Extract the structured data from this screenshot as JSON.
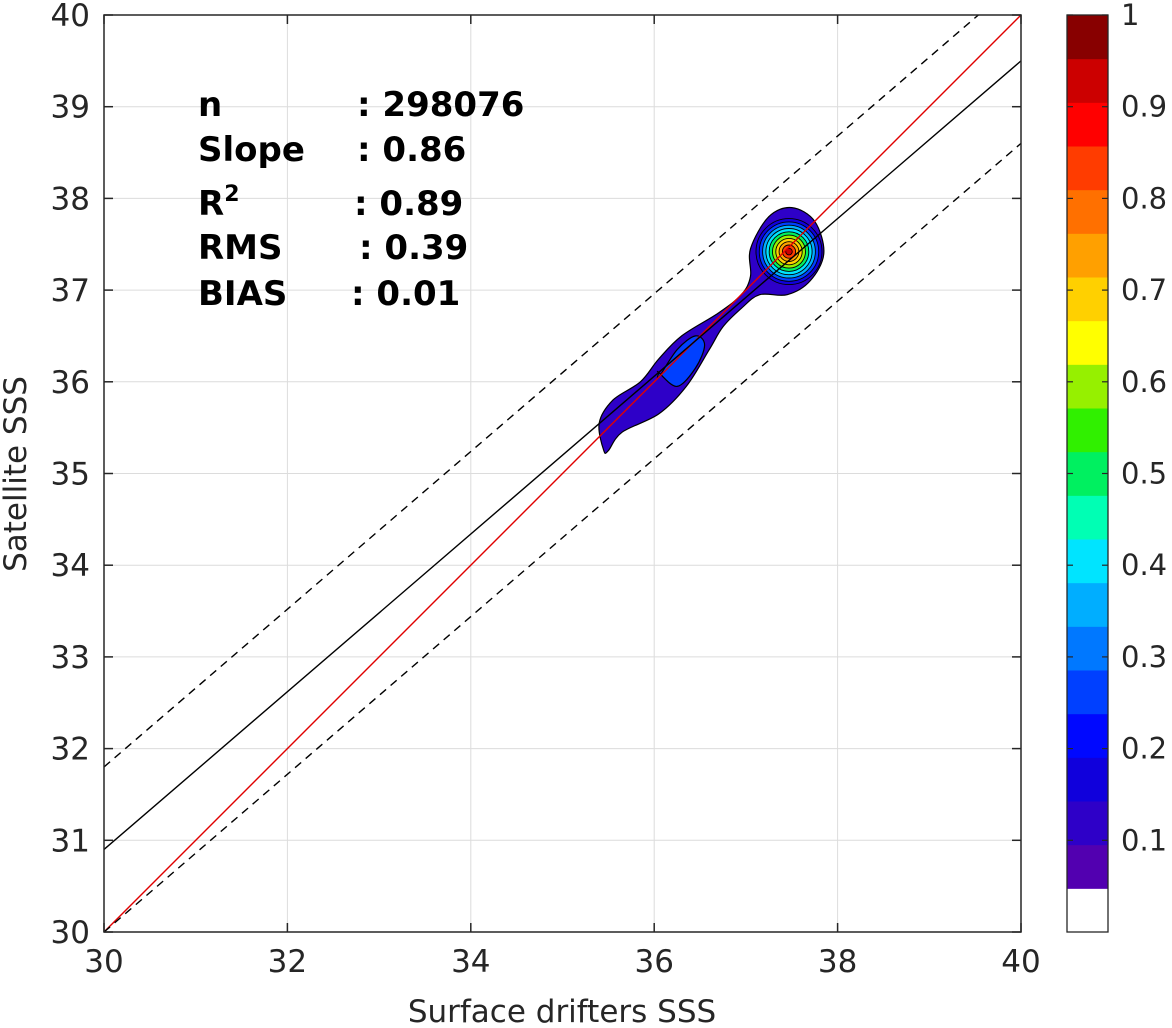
{
  "chart_data": {
    "type": "heatmap",
    "subtype": "density-contour-scatter",
    "xlabel": "Surface drifters SSS",
    "ylabel": "Satellite SSS",
    "xlim": [
      30,
      40
    ],
    "ylim": [
      30,
      40
    ],
    "xticks": [
      30,
      32,
      34,
      36,
      38,
      40
    ],
    "yticks": [
      30,
      31,
      32,
      33,
      34,
      35,
      36,
      37,
      38,
      39,
      40
    ],
    "grid": true,
    "stats": [
      {
        "key": "n",
        "label": "n",
        "value": ": 298076"
      },
      {
        "key": "slope",
        "label": "Slope",
        "value": ": 0.86"
      },
      {
        "key": "r2",
        "label": "R",
        "label_sup": "2",
        "value": ": 0.89"
      },
      {
        "key": "rms",
        "label": "RMS",
        "value": ": 0.39"
      },
      {
        "key": "bias",
        "label": "BIAS",
        "value": ": 0.01"
      }
    ],
    "lines": [
      {
        "name": "1:1",
        "style": "solid",
        "color": "#e00000",
        "points": [
          [
            30,
            30
          ],
          [
            40,
            40
          ]
        ]
      },
      {
        "name": "fit",
        "style": "solid",
        "color": "#000000",
        "points": [
          [
            30,
            30.9
          ],
          [
            40,
            39.5
          ]
        ]
      },
      {
        "name": "upper",
        "style": "dashed",
        "color": "#000000",
        "points": [
          [
            30,
            31.8
          ],
          [
            40,
            40.4
          ]
        ]
      },
      {
        "name": "lower",
        "style": "dashed",
        "color": "#000000",
        "points": [
          [
            30,
            30
          ],
          [
            40,
            38.6
          ]
        ]
      }
    ],
    "density": {
      "outer_region": [
        [
          35.45,
          35.25
        ],
        [
          35.4,
          35.55
        ],
        [
          35.55,
          35.8
        ],
        [
          35.85,
          36.0
        ],
        [
          36.05,
          36.25
        ],
        [
          36.3,
          36.5
        ],
        [
          36.7,
          36.75
        ],
        [
          36.95,
          36.95
        ],
        [
          37.05,
          37.15
        ],
        [
          37.05,
          37.45
        ],
        [
          37.25,
          37.8
        ],
        [
          37.5,
          37.9
        ],
        [
          37.75,
          37.75
        ],
        [
          37.85,
          37.4
        ],
        [
          37.7,
          37.1
        ],
        [
          37.45,
          36.95
        ],
        [
          37.15,
          36.95
        ],
        [
          36.95,
          36.8
        ],
        [
          36.75,
          36.6
        ],
        [
          36.6,
          36.35
        ],
        [
          36.35,
          35.95
        ],
        [
          36.05,
          35.65
        ],
        [
          35.65,
          35.45
        ],
        [
          35.5,
          35.25
        ]
      ],
      "inner_region": [
        [
          36.05,
          36.1
        ],
        [
          36.05,
          36.05
        ],
        [
          36.25,
          36.35
        ],
        [
          36.45,
          36.5
        ],
        [
          36.55,
          36.4
        ],
        [
          36.45,
          36.15
        ],
        [
          36.25,
          35.95
        ],
        [
          36.05,
          36.1
        ]
      ],
      "peak": {
        "x": 37.47,
        "y": 37.42
      },
      "levels": [
        0.05,
        0.1,
        0.2,
        0.3,
        0.4,
        0.5,
        0.6,
        0.7,
        0.8,
        0.9,
        0.97
      ]
    },
    "colorbar": {
      "range": [
        0,
        1
      ],
      "ticks": [
        "0.1",
        "0.2",
        "0.3",
        "0.4",
        "0.5",
        "0.6",
        "0.7",
        "0.8",
        "0.9",
        "1"
      ],
      "colors": [
        "#ffffff",
        "#5200b0",
        "#2e00c8",
        "#1000dc",
        "#0008ff",
        "#0040ff",
        "#0078ff",
        "#00aeff",
        "#00e4ff",
        "#00ffb4",
        "#00f060",
        "#30f000",
        "#96f000",
        "#ffff00",
        "#ffd000",
        "#ffa000",
        "#ff7000",
        "#ff3c00",
        "#ff0000",
        "#cc0000",
        "#880000"
      ]
    }
  }
}
